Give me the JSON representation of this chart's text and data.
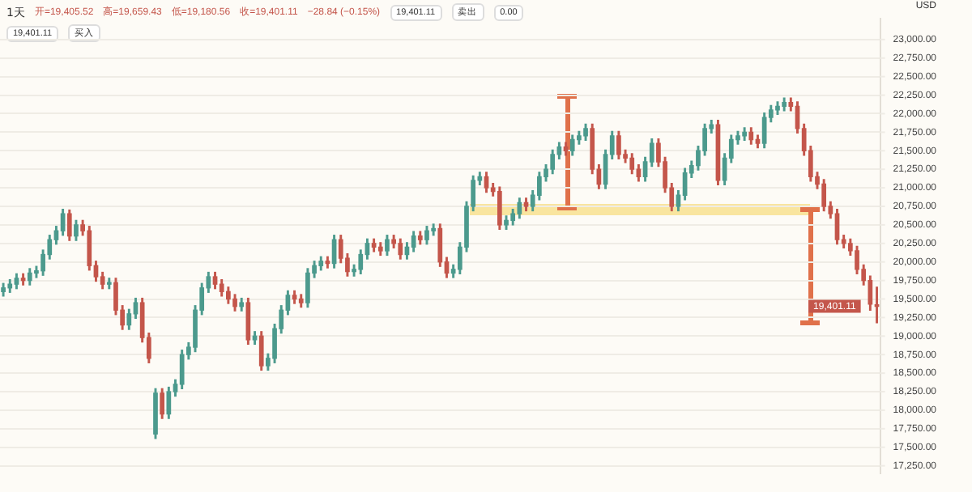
{
  "chart_data": {
    "type": "candlestick",
    "title": "1天",
    "ylabel": "USD",
    "grid": "y",
    "legend": false,
    "tick_labels": "y",
    "categories": [
      null,
      null,
      null,
      null,
      null,
      null,
      null,
      null,
      null,
      null,
      null,
      null,
      null,
      null,
      null,
      null,
      null,
      null,
      null,
      null,
      null,
      null,
      null,
      null,
      null,
      null,
      null,
      null,
      null,
      null,
      null,
      null,
      null,
      null,
      null,
      null,
      null,
      null,
      null,
      null,
      null,
      null,
      null,
      null,
      null,
      null,
      null,
      null,
      null,
      null,
      null,
      null,
      null,
      null,
      null,
      null,
      null,
      null,
      null,
      null,
      null,
      null,
      null,
      null,
      null,
      null,
      null,
      null,
      null,
      null,
      null,
      null,
      null,
      null,
      null,
      null,
      null,
      null,
      null,
      null,
      null,
      null,
      null,
      null,
      null,
      null,
      null,
      null,
      null,
      null,
      null,
      null,
      null,
      null,
      null,
      null,
      null,
      null,
      null,
      null,
      null,
      null,
      null,
      null,
      null,
      null,
      null,
      null,
      null,
      null,
      null,
      null,
      null,
      null,
      null,
      null,
      null,
      null,
      null,
      null,
      null,
      null,
      null,
      null,
      null,
      null,
      null,
      null,
      null,
      null,
      null,
      null,
      null
    ],
    "ylim": [
      17150,
      23280
    ],
    "yticks": [
      {
        "value": 17250,
        "label": "17,250.00"
      },
      {
        "value": 17500,
        "label": "17,500.00"
      },
      {
        "value": 17750,
        "label": "17,750.00"
      },
      {
        "value": 18000,
        "label": "18,000.00"
      },
      {
        "value": 18250,
        "label": "18,250.00"
      },
      {
        "value": 18500,
        "label": "18,500.00"
      },
      {
        "value": 18750,
        "label": "18,750.00"
      },
      {
        "value": 19000,
        "label": "19,000.00"
      },
      {
        "value": 19250,
        "label": "19,250.00"
      },
      {
        "value": 19500,
        "label": "19,500.00"
      },
      {
        "value": 19750,
        "label": "19,750.00"
      },
      {
        "value": 20000,
        "label": "20,000.00"
      },
      {
        "value": 20250,
        "label": "20,250.00"
      },
      {
        "value": 20500,
        "label": "20,500.00"
      },
      {
        "value": 20750,
        "label": "20,750.00"
      },
      {
        "value": 21000,
        "label": "21,000.00"
      },
      {
        "value": 21250,
        "label": "21,250.00"
      },
      {
        "value": 21500,
        "label": "21,500.00"
      },
      {
        "value": 21750,
        "label": "21,750.00"
      },
      {
        "value": 22000,
        "label": "22,000.00"
      },
      {
        "value": 22250,
        "label": "22,250.00"
      },
      {
        "value": 22500,
        "label": "22,500.00"
      },
      {
        "value": 22750,
        "label": "22,750.00"
      },
      {
        "value": 23000,
        "label": "23,000.00"
      }
    ],
    "annotations": [
      "开=19,405.52",
      "高=19,659.43",
      "低=19,180.56",
      "收=19,401.11",
      "−28.84 (−0.15%)",
      "19,401.11",
      "卖出",
      "0.00",
      "19,401.11",
      "买入",
      "19,401.11"
    ],
    "ohlc": [
      [
        19600,
        19710,
        19540,
        19650
      ],
      [
        19650,
        19760,
        19590,
        19700
      ],
      [
        19700,
        19840,
        19640,
        19780
      ],
      [
        19780,
        19840,
        19690,
        19750
      ],
      [
        19750,
        19910,
        19690,
        19850
      ],
      [
        19850,
        19940,
        19790,
        19880
      ],
      [
        19880,
        20160,
        19820,
        20100
      ],
      [
        20100,
        20360,
        20040,
        20300
      ],
      [
        20300,
        20480,
        20240,
        20420
      ],
      [
        20420,
        20710,
        20360,
        20650
      ],
      [
        20650,
        20700,
        20290,
        20350
      ],
      [
        20350,
        20560,
        20290,
        20500
      ],
      [
        20500,
        20560,
        20360,
        20420
      ],
      [
        20420,
        20480,
        19890,
        19950
      ],
      [
        19950,
        20010,
        19740,
        19800
      ],
      [
        19800,
        19860,
        19640,
        19700
      ],
      [
        19700,
        19780,
        19640,
        19720
      ],
      [
        19720,
        19780,
        19290,
        19350
      ],
      [
        19350,
        19410,
        19090,
        19150
      ],
      [
        19150,
        19360,
        19090,
        19300
      ],
      [
        19300,
        19510,
        19240,
        19450
      ],
      [
        19450,
        19510,
        18920,
        18980
      ],
      [
        18980,
        19040,
        18640,
        18700
      ],
      [
        17680,
        18290,
        17620,
        18230
      ],
      [
        18230,
        18290,
        17890,
        17950
      ],
      [
        17950,
        18310,
        17890,
        18250
      ],
      [
        18250,
        18410,
        18190,
        18350
      ],
      [
        18350,
        18810,
        18290,
        18750
      ],
      [
        18750,
        18910,
        18690,
        18850
      ],
      [
        18850,
        19410,
        18790,
        19350
      ],
      [
        19350,
        19710,
        19290,
        19650
      ],
      [
        19650,
        19860,
        19590,
        19800
      ],
      [
        19800,
        19860,
        19640,
        19700
      ],
      [
        19700,
        19760,
        19540,
        19600
      ],
      [
        19600,
        19660,
        19440,
        19500
      ],
      [
        19500,
        19560,
        19340,
        19400
      ],
      [
        19400,
        19510,
        19340,
        19450
      ],
      [
        19450,
        19510,
        18890,
        18950
      ],
      [
        18950,
        19060,
        18890,
        19000
      ],
      [
        19000,
        19060,
        18540,
        18600
      ],
      [
        18600,
        18760,
        18540,
        18700
      ],
      [
        18700,
        19160,
        18640,
        19100
      ],
      [
        19100,
        19410,
        19040,
        19350
      ],
      [
        19350,
        19610,
        19290,
        19550
      ],
      [
        19550,
        19610,
        19440,
        19500
      ],
      [
        19500,
        19560,
        19390,
        19450
      ],
      [
        19450,
        19910,
        19390,
        19850
      ],
      [
        19850,
        20010,
        19790,
        19950
      ],
      [
        19950,
        20070,
        19890,
        20010
      ],
      [
        20010,
        20070,
        19920,
        19980
      ],
      [
        19980,
        20360,
        19920,
        20300
      ],
      [
        20300,
        20360,
        19990,
        20050
      ],
      [
        20050,
        20110,
        19810,
        19870
      ],
      [
        19870,
        19960,
        19810,
        19900
      ],
      [
        19900,
        20160,
        19840,
        20100
      ],
      [
        20100,
        20310,
        20040,
        20250
      ],
      [
        20250,
        20310,
        20140,
        20200
      ],
      [
        20200,
        20260,
        20090,
        20150
      ],
      [
        20150,
        20360,
        20090,
        20300
      ],
      [
        20300,
        20360,
        20190,
        20250
      ],
      [
        20250,
        20310,
        20040,
        20100
      ],
      [
        20100,
        20260,
        20040,
        20200
      ],
      [
        20200,
        20410,
        20140,
        20350
      ],
      [
        20350,
        20410,
        20240,
        20300
      ],
      [
        20300,
        20480,
        20240,
        20420
      ],
      [
        20420,
        20510,
        20360,
        20450
      ],
      [
        20450,
        20510,
        19940,
        20000
      ],
      [
        20000,
        20060,
        19790,
        19850
      ],
      [
        19850,
        19960,
        19790,
        19900
      ],
      [
        19900,
        20260,
        19840,
        20200
      ],
      [
        20200,
        20810,
        20140,
        20750
      ],
      [
        20750,
        21160,
        20690,
        21100
      ],
      [
        21100,
        21210,
        21040,
        21150
      ],
      [
        21150,
        21210,
        20940,
        21000
      ],
      [
        21000,
        21060,
        20890,
        20950
      ],
      [
        20950,
        21010,
        20440,
        20500
      ],
      [
        20500,
        20620,
        20440,
        20560
      ],
      [
        20560,
        20710,
        20500,
        20650
      ],
      [
        20650,
        20860,
        20590,
        20800
      ],
      [
        20800,
        20860,
        20690,
        20750
      ],
      [
        20750,
        20960,
        20690,
        20900
      ],
      [
        20900,
        21210,
        20840,
        21150
      ],
      [
        21150,
        21310,
        21090,
        21250
      ],
      [
        21250,
        21510,
        21190,
        21450
      ],
      [
        21450,
        21610,
        21390,
        21550
      ],
      [
        21550,
        21610,
        21440,
        21500
      ],
      [
        21500,
        21710,
        21440,
        21650
      ],
      [
        21650,
        21760,
        21590,
        21700
      ],
      [
        21700,
        21860,
        21640,
        21800
      ],
      [
        21800,
        21860,
        21190,
        21250
      ],
      [
        21250,
        21310,
        20990,
        21050
      ],
      [
        21050,
        21510,
        20990,
        21450
      ],
      [
        21450,
        21760,
        21390,
        21700
      ],
      [
        21700,
        21760,
        21390,
        21450
      ],
      [
        21450,
        21510,
        21340,
        21400
      ],
      [
        21400,
        21460,
        21190,
        21250
      ],
      [
        21250,
        21310,
        21090,
        21150
      ],
      [
        21150,
        21410,
        21090,
        21350
      ],
      [
        21350,
        21660,
        21290,
        21600
      ],
      [
        21600,
        21660,
        21290,
        21350
      ],
      [
        21350,
        21410,
        20940,
        21000
      ],
      [
        21000,
        21060,
        20690,
        20750
      ],
      [
        20750,
        20960,
        20690,
        20900
      ],
      [
        20900,
        21260,
        20840,
        21200
      ],
      [
        21200,
        21360,
        21140,
        21300
      ],
      [
        21300,
        21560,
        21240,
        21500
      ],
      [
        21500,
        21860,
        21440,
        21800
      ],
      [
        21800,
        21910,
        21740,
        21850
      ],
      [
        21850,
        21910,
        21040,
        21100
      ],
      [
        21100,
        21460,
        21040,
        21400
      ],
      [
        21400,
        21710,
        21340,
        21650
      ],
      [
        21650,
        21760,
        21590,
        21700
      ],
      [
        21700,
        21810,
        21640,
        21750
      ],
      [
        21750,
        21810,
        21590,
        21650
      ],
      [
        21650,
        21710,
        21540,
        21600
      ],
      [
        21600,
        22010,
        21540,
        21950
      ],
      [
        21950,
        22110,
        21890,
        22050
      ],
      [
        22050,
        22160,
        21990,
        22100
      ],
      [
        22100,
        22210,
        22040,
        22150
      ],
      [
        22150,
        22210,
        22040,
        22100
      ],
      [
        22100,
        22160,
        21740,
        21800
      ],
      [
        21800,
        21860,
        21440,
        21500
      ],
      [
        21500,
        21560,
        21090,
        21150
      ],
      [
        21150,
        21210,
        20990,
        21050
      ],
      [
        21050,
        21110,
        20690,
        20750
      ],
      [
        20750,
        20810,
        20590,
        20650
      ],
      [
        20650,
        20710,
        20240,
        20300
      ],
      [
        20300,
        20360,
        20190,
        20250
      ],
      [
        20250,
        20310,
        20090,
        20150
      ],
      [
        20150,
        20210,
        19840,
        19900
      ],
      [
        19900,
        19960,
        19690,
        19750
      ],
      [
        19750,
        19810,
        19350,
        19430
      ],
      [
        19405.52,
        19659.43,
        19180.56,
        19401.11
      ]
    ]
  }
}
